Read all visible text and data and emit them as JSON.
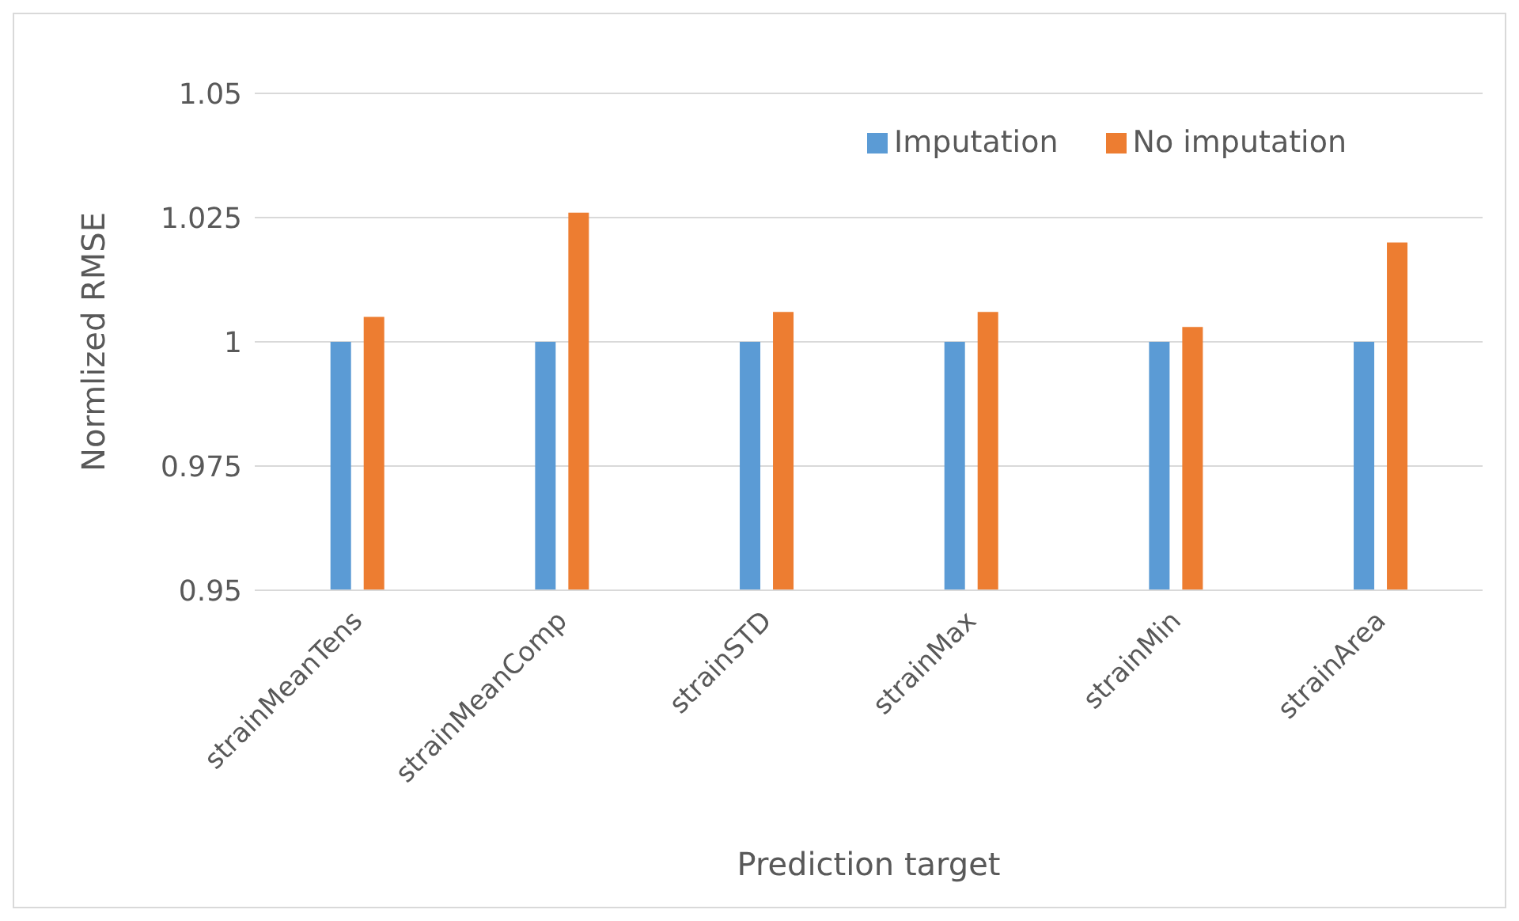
{
  "chart_data": {
    "type": "bar",
    "xlabel": "Prediction target",
    "ylabel": "Normlized RMSE",
    "categories": [
      "strainMeanTens",
      "strainMeanComp",
      "strainSTD",
      "strainMax",
      "strainMin",
      "strainArea"
    ],
    "series": [
      {
        "name": "Imputation",
        "color": "#5b9bd5",
        "values": [
          1,
          1,
          1,
          1,
          1,
          1
        ]
      },
      {
        "name": "No imputation",
        "color": "#ed7d31",
        "values": [
          1.005,
          1.026,
          1.006,
          1.006,
          1.003,
          1.02
        ]
      }
    ],
    "ylim": [
      0.95,
      1.05
    ],
    "yticks": [
      0.95,
      0.975,
      1,
      1.025,
      1.05
    ],
    "grid": "y",
    "legend": "top right"
  }
}
